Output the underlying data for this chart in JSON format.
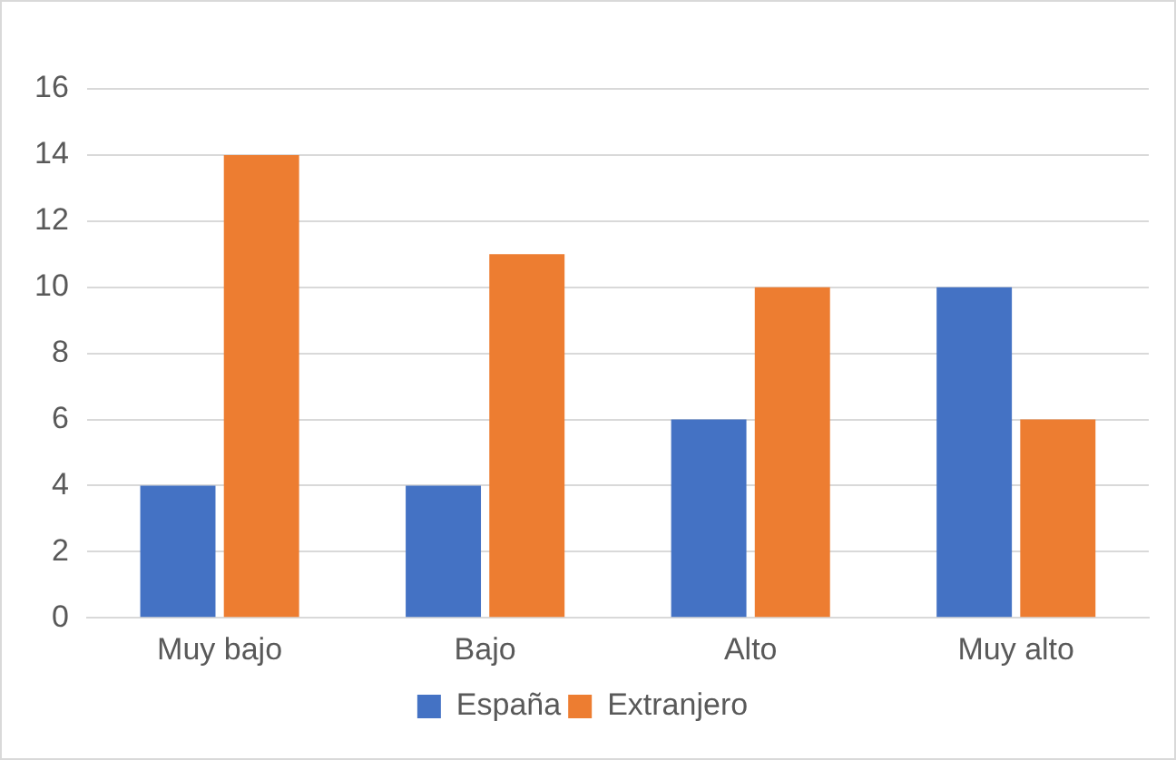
{
  "chart_data": {
    "type": "bar",
    "categories": [
      "Muy bajo",
      "Bajo",
      "Alto",
      "Muy alto"
    ],
    "series": [
      {
        "name": "España",
        "color": "#4472c4",
        "values": [
          4,
          4,
          6,
          10
        ]
      },
      {
        "name": "Extranjero",
        "color": "#ed7d31",
        "values": [
          14,
          11,
          10,
          6
        ]
      }
    ],
    "ylim": [
      0,
      16
    ],
    "yticks": [
      0,
      2,
      4,
      6,
      8,
      10,
      12,
      14,
      16
    ],
    "grid": "y",
    "legend": "bottom"
  }
}
